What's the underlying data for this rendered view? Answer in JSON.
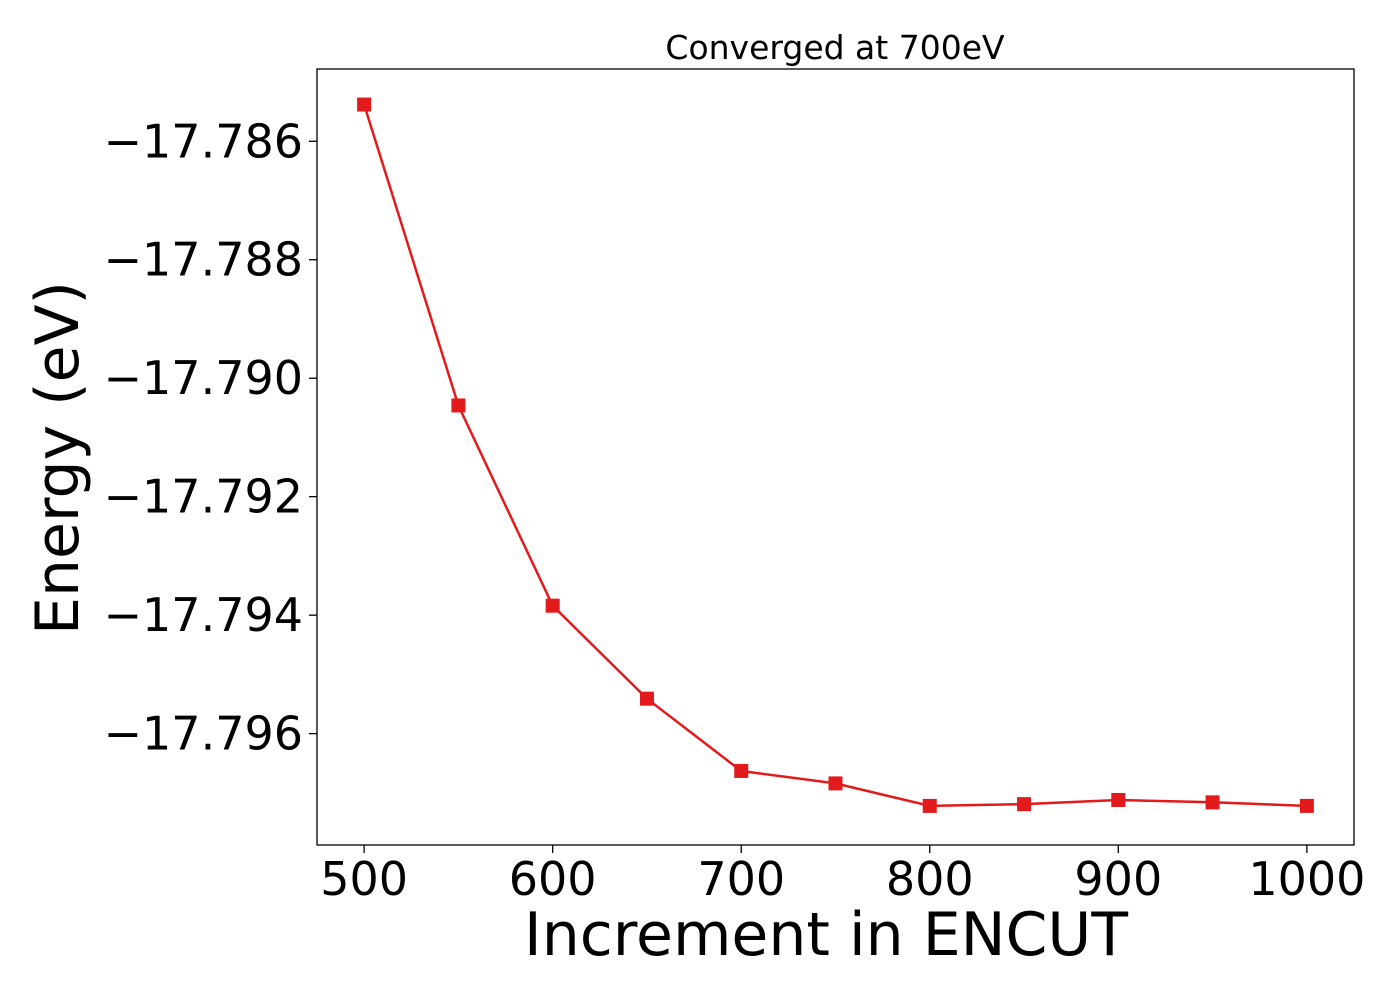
{
  "chart_data": {
    "type": "line",
    "title": "Converged at 700eV",
    "xlabel": "Increment in ENCUT",
    "ylabel": "Energy (eV)",
    "xlim": [
      475,
      1025
    ],
    "ylim": [
      -17.79788,
      -17.78478
    ],
    "xticks": [
      500,
      600,
      700,
      800,
      900,
      1000
    ],
    "xtick_labels": [
      "500",
      "600",
      "700",
      "800",
      "900",
      "1000"
    ],
    "yticks": [
      -17.786,
      -17.788,
      -17.79,
      -17.792,
      -17.794,
      -17.796
    ],
    "ytick_labels": [
      "−17.786",
      "−17.788",
      "−17.790",
      "−17.792",
      "−17.794",
      "−17.796"
    ],
    "grid": false,
    "series": [
      {
        "color": "#e31a1c",
        "marker": "square",
        "x": [
          500,
          550,
          600,
          650,
          700,
          750,
          800,
          850,
          900,
          950,
          1000
        ],
        "y": [
          -17.78538,
          -17.79046,
          -17.79384,
          -17.79541,
          -17.79663,
          -17.79684,
          -17.79722,
          -17.79719,
          -17.79712,
          -17.79716,
          -17.79722
        ]
      }
    ]
  }
}
